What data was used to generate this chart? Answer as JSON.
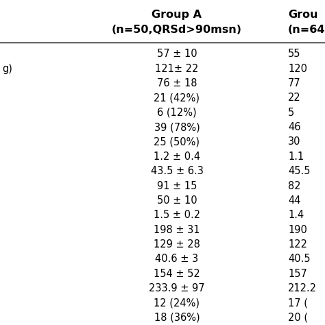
{
  "col_a_values": [
    "57 ± 10",
    "121± 22",
    "76 ± 18",
    "21 (42%)",
    "6 (12%)",
    "39 (78%)",
    "25 (50%)",
    "1.2 ± 0.4",
    "43.5 ± 6.3",
    "91 ± 15",
    "50 ± 10",
    "1.5 ± 0.2",
    "198 ± 31",
    "129 ± 28",
    "40.6 ± 3",
    "154 ± 52",
    "233.9 ± 97",
    "12 (24%)",
    "18 (36%)"
  ],
  "col_b_values": [
    "55",
    "120",
    "77",
    "22",
    "5",
    "46",
    "30",
    "1.1",
    "45.5",
    "82",
    "44",
    "1.4",
    "190",
    "122",
    "40.5",
    "157",
    "212.2",
    "17 (",
    "20 ("
  ],
  "row_labels_row": 1,
  "background_color": "#ffffff",
  "header_line_color": "#000000",
  "text_color": "#000000",
  "font_size": 10.5,
  "header_font_size": 11.5
}
